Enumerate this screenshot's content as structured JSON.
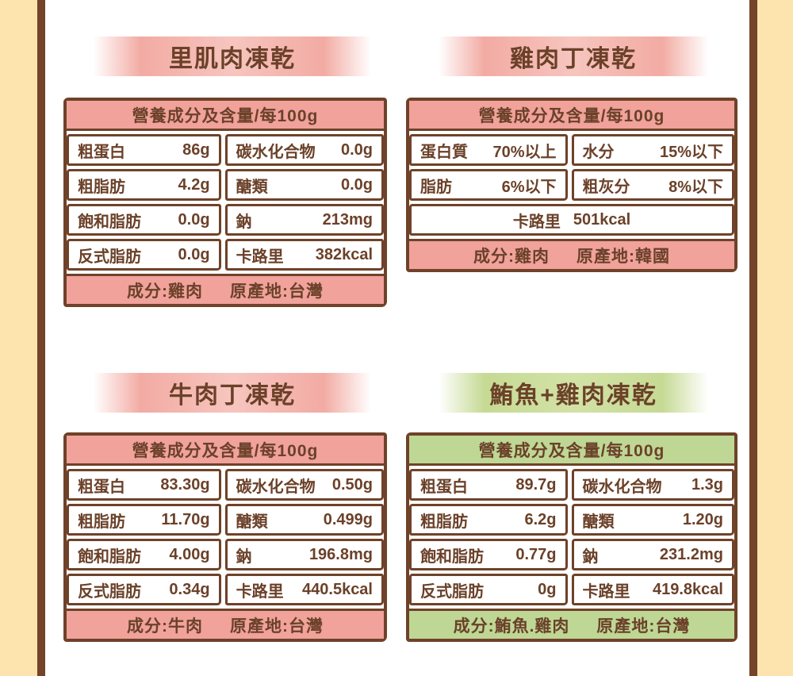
{
  "colors": {
    "text_brown": "#6b4129",
    "border_brown": "#6f4229",
    "pink_band": "#f0a29b",
    "green_band": "#bed795",
    "side_cream": "#fde4ae",
    "side_brown": "#74432a"
  },
  "products": [
    {
      "title": "里肌肉凍乾",
      "theme": "pink",
      "table_header": "營養成分及含量/每100g",
      "rows": [
        [
          {
            "label": "粗蛋白",
            "value": "86g"
          },
          {
            "label": "碳水化合物",
            "value": "0.0g"
          }
        ],
        [
          {
            "label": "粗脂肪",
            "value": "4.2g"
          },
          {
            "label": "醣類",
            "value": "0.0g"
          }
        ],
        [
          {
            "label": "飽和脂肪",
            "value": "0.0g"
          },
          {
            "label": "鈉",
            "value": "213mg"
          }
        ],
        [
          {
            "label": "反式脂肪",
            "value": "0.0g"
          },
          {
            "label": "卡路里",
            "value": "382kcal"
          }
        ]
      ],
      "footer": {
        "ingredient": "成分:雞肉",
        "origin": "原產地:台灣"
      }
    },
    {
      "title": "雞肉丁凍乾",
      "theme": "pink",
      "table_header": "營養成分及含量/每100g",
      "rows": [
        [
          {
            "label": "蛋白質",
            "value": "70%以上"
          },
          {
            "label": "水分",
            "value": "15%以下"
          }
        ],
        [
          {
            "label": "脂肪",
            "value": "6%以下"
          },
          {
            "label": "粗灰分",
            "value": "8%以下"
          }
        ]
      ],
      "calorie_row": {
        "label": "卡路里",
        "value": "501kcal"
      },
      "footer": {
        "ingredient": "成分:雞肉",
        "origin": "原產地:韓國"
      }
    },
    {
      "title": "牛肉丁凍乾",
      "theme": "pink",
      "table_header": "營養成分及含量/每100g",
      "rows": [
        [
          {
            "label": "粗蛋白",
            "value": "83.30g"
          },
          {
            "label": "碳水化合物",
            "value": "0.50g"
          }
        ],
        [
          {
            "label": "粗脂肪",
            "value": "11.70g"
          },
          {
            "label": "醣類",
            "value": "0.499g"
          }
        ],
        [
          {
            "label": "飽和脂肪",
            "value": "4.00g"
          },
          {
            "label": "鈉",
            "value": "196.8mg"
          }
        ],
        [
          {
            "label": "反式脂肪",
            "value": "0.34g"
          },
          {
            "label": "卡路里",
            "value": "440.5kcal"
          }
        ]
      ],
      "footer": {
        "ingredient": "成分:牛肉",
        "origin": "原產地:台灣"
      }
    },
    {
      "title": "鮪魚+雞肉凍乾",
      "theme": "green",
      "table_header": "營養成分及含量/每100g",
      "rows": [
        [
          {
            "label": "粗蛋白",
            "value": "89.7g"
          },
          {
            "label": "碳水化合物",
            "value": "1.3g"
          }
        ],
        [
          {
            "label": "粗脂肪",
            "value": "6.2g"
          },
          {
            "label": "醣類",
            "value": "1.20g"
          }
        ],
        [
          {
            "label": "飽和脂肪",
            "value": "0.77g"
          },
          {
            "label": "鈉",
            "value": "231.2mg"
          }
        ],
        [
          {
            "label": "反式脂肪",
            "value": "0g"
          },
          {
            "label": "卡路里",
            "value": "419.8kcal"
          }
        ]
      ],
      "footer": {
        "ingredient": "成分:鮪魚.雞肉",
        "origin": "原產地:台灣"
      }
    }
  ]
}
